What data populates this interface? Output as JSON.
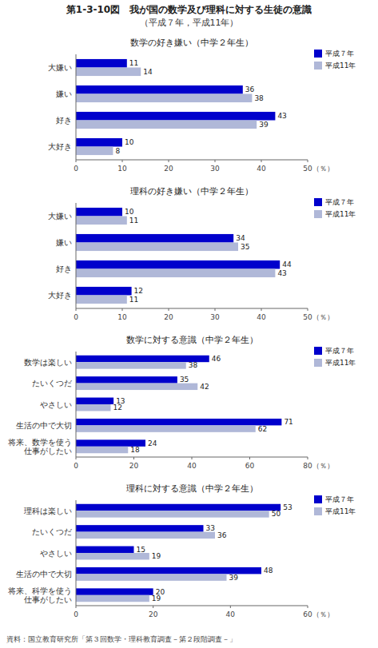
{
  "title": "第1-3-10図　我が国の数学及び理科に対する生徒の意識",
  "subtitle": "（平成７年，平成11年）",
  "annotations": [
    "資料：国立教育研究所「第３回数学・理科教育調査－第２段階調査－」"
  ],
  "chart_data": [
    {
      "type": "bar",
      "orientation": "horizontal",
      "title": "数学の好き嫌い（中学２年生）",
      "categories": [
        "大嫌い",
        "嫌い",
        "好き",
        "大好き"
      ],
      "series": [
        {
          "name": "平成７年",
          "color": "#0000cc",
          "values": [
            11,
            36,
            43,
            10
          ]
        },
        {
          "name": "平成11年",
          "color": "#b0b8d8",
          "values": [
            14,
            38,
            39,
            8
          ]
        }
      ],
      "xlim": [
        0,
        50
      ],
      "xticks": [
        0,
        10,
        20,
        30,
        40,
        50
      ],
      "xlabel": "（％）",
      "data_labels": true,
      "legend": "upper right",
      "grid": false
    },
    {
      "type": "bar",
      "orientation": "horizontal",
      "title": "理科の好き嫌い（中学２年生）",
      "categories": [
        "大嫌い",
        "嫌い",
        "好き",
        "大好き"
      ],
      "series": [
        {
          "name": "平成７年",
          "color": "#0000cc",
          "values": [
            10,
            34,
            44,
            12
          ]
        },
        {
          "name": "平成11年",
          "color": "#b0b8d8",
          "values": [
            11,
            35,
            43,
            11
          ]
        }
      ],
      "xlim": [
        0,
        50
      ],
      "xticks": [
        0,
        10,
        20,
        30,
        40,
        50
      ],
      "xlabel": "（％）",
      "data_labels": true,
      "legend": "upper right",
      "grid": false
    },
    {
      "type": "bar",
      "orientation": "horizontal",
      "title": "数学に対する意識（中学２年生）",
      "categories": [
        "数学は楽しい",
        "たいくつだ",
        "やさしい",
        "生活の中で大切",
        "将来、数学を使う\n仕事がしたい"
      ],
      "series": [
        {
          "name": "平成７年",
          "color": "#0000cc",
          "values": [
            46,
            35,
            13,
            71,
            24
          ]
        },
        {
          "name": "平成11年",
          "color": "#b0b8d8",
          "values": [
            38,
            42,
            12,
            62,
            18
          ]
        }
      ],
      "xlim": [
        0,
        80
      ],
      "xticks": [
        0,
        20,
        40,
        60,
        80
      ],
      "xlabel": "（％）",
      "data_labels": true,
      "legend": "upper right",
      "grid": false
    },
    {
      "type": "bar",
      "orientation": "horizontal",
      "title": "理科に対する意識（中学２年生）",
      "categories": [
        "理科は楽しい",
        "たいくつだ",
        "やさしい",
        "生活の中で大切",
        "将来、科学を使う\n仕事がしたい"
      ],
      "series": [
        {
          "name": "平成７年",
          "color": "#0000cc",
          "values": [
            53,
            33,
            15,
            48,
            20
          ]
        },
        {
          "name": "平成11年",
          "color": "#b0b8d8",
          "values": [
            50,
            36,
            19,
            39,
            19
          ]
        }
      ],
      "xlim": [
        0,
        60
      ],
      "xticks": [
        0,
        20,
        40,
        60
      ],
      "xlabel": "（％）",
      "data_labels": true,
      "legend": "upper right",
      "grid": false
    }
  ]
}
